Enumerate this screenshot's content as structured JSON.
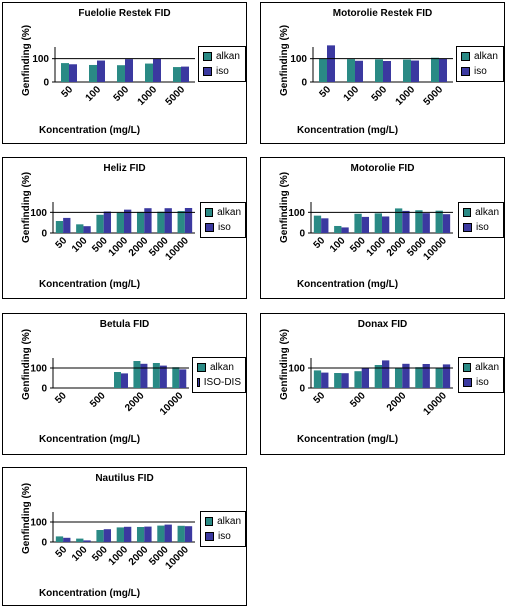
{
  "chart_data": [
    {
      "type": "bar",
      "title": "Fuelolie Restek FID",
      "xlabel": "Koncentration (mg/L)",
      "ylabel": "Genfinding (%)",
      "yticks": [
        "0",
        "100"
      ],
      "ylim": [
        0,
        150
      ],
      "reference_line": 100,
      "categories": [
        "50",
        "100",
        "500",
        "1000",
        "5000"
      ],
      "series": [
        {
          "name": "alkan",
          "values": [
            81,
            73,
            72,
            79,
            64
          ]
        },
        {
          "name": "iso",
          "values": [
            76,
            92,
            98,
            99,
            66
          ]
        }
      ],
      "legend": "right"
    },
    {
      "type": "bar",
      "title": "Motorolie Restek FID",
      "xlabel": "Koncentration (mg/L)",
      "ylabel": "Genfinding (%)",
      "yticks": [
        "0",
        "100"
      ],
      "ylim": [
        0,
        150
      ],
      "reference_line": 100,
      "categories": [
        "50",
        "100",
        "500",
        "1000",
        "5000"
      ],
      "series": [
        {
          "name": "alkan",
          "values": [
            100,
            98,
            97,
            96,
            104
          ]
        },
        {
          "name": "iso",
          "values": [
            157,
            91,
            90,
            92,
            99
          ]
        }
      ],
      "legend": "right"
    },
    {
      "type": "bar",
      "title": "Heliz FID",
      "xlabel": "Koncentration (mg/L)",
      "ylabel": "Genfinding (%)",
      "yticks": [
        "0",
        "100"
      ],
      "ylim": [
        0,
        150
      ],
      "reference_line": 100,
      "categories": [
        "50",
        "100",
        "500",
        "1000",
        "2000",
        "5000",
        "10000"
      ],
      "series": [
        {
          "name": "alkan",
          "values": [
            58,
            42,
            88,
            98,
            102,
            103,
            106
          ]
        },
        {
          "name": "iso",
          "values": [
            73,
            33,
            104,
            113,
            120,
            120,
            121
          ]
        }
      ],
      "legend": "right"
    },
    {
      "type": "bar",
      "title": "Motorolie FID",
      "xlabel": "Koncentration (mg/L)",
      "ylabel": "Genfinding (%)",
      "yticks": [
        "0",
        "100"
      ],
      "ylim": [
        0,
        150
      ],
      "reference_line": 100,
      "categories": [
        "50",
        "100",
        "500",
        "1000",
        "2000",
        "5000",
        "10000"
      ],
      "series": [
        {
          "name": "alkan",
          "values": [
            84,
            34,
            93,
            95,
            119,
            110,
            108
          ]
        },
        {
          "name": "iso",
          "values": [
            71,
            27,
            78,
            80,
            107,
            96,
            91
          ]
        }
      ],
      "legend": "right"
    },
    {
      "type": "bar",
      "title": "Betula FID",
      "xlabel": "Koncentration (mg/L)",
      "ylabel": "Genfinding (%)",
      "yticks": [
        "0",
        "100"
      ],
      "ylim": [
        0,
        150
      ],
      "reference_line": 100,
      "categories": [
        "50",
        "",
        "500",
        "",
        "2000",
        "",
        "10000"
      ],
      "series": [
        {
          "name": "alkan",
          "values": [
            0,
            0,
            0,
            80,
            135,
            125,
            104
          ]
        },
        {
          "name": "ISO-DIS",
          "values": [
            0,
            0,
            0,
            73,
            121,
            112,
            93
          ]
        }
      ],
      "legend": "right"
    },
    {
      "type": "bar",
      "title": "Donax FID",
      "xlabel": "Koncentration (mg/L)",
      "ylabel": "Genfinding (%)",
      "yticks": [
        "0",
        "100"
      ],
      "ylim": [
        0,
        150
      ],
      "reference_line": 100,
      "categories": [
        "50",
        "",
        "500",
        "",
        "2000",
        "",
        "10000"
      ],
      "series": [
        {
          "name": "alkan",
          "values": [
            88,
            75,
            84,
            115,
            102,
            104,
            102
          ]
        },
        {
          "name": "iso",
          "values": [
            77,
            74,
            99,
            138,
            121,
            120,
            118
          ]
        }
      ],
      "legend": "right"
    },
    {
      "type": "bar",
      "title": "Nautilus FID",
      "xlabel": "Koncentration (mg/L)",
      "ylabel": "Genfinding (%)",
      "yticks": [
        "0",
        "100"
      ],
      "ylim": [
        0,
        150
      ],
      "reference_line": 100,
      "categories": [
        "50",
        "100",
        "500",
        "1000",
        "2000",
        "5000",
        "10000"
      ],
      "series": [
        {
          "name": "alkan",
          "values": [
            28,
            17,
            60,
            73,
            75,
            82,
            81
          ]
        },
        {
          "name": "iso",
          "values": [
            21,
            8,
            64,
            76,
            77,
            87,
            79
          ]
        }
      ],
      "legend": "right"
    }
  ],
  "colors": {
    "series_0": "#2a8a85",
    "series_1": "#3b39a0",
    "reference_line": "#000000"
  }
}
